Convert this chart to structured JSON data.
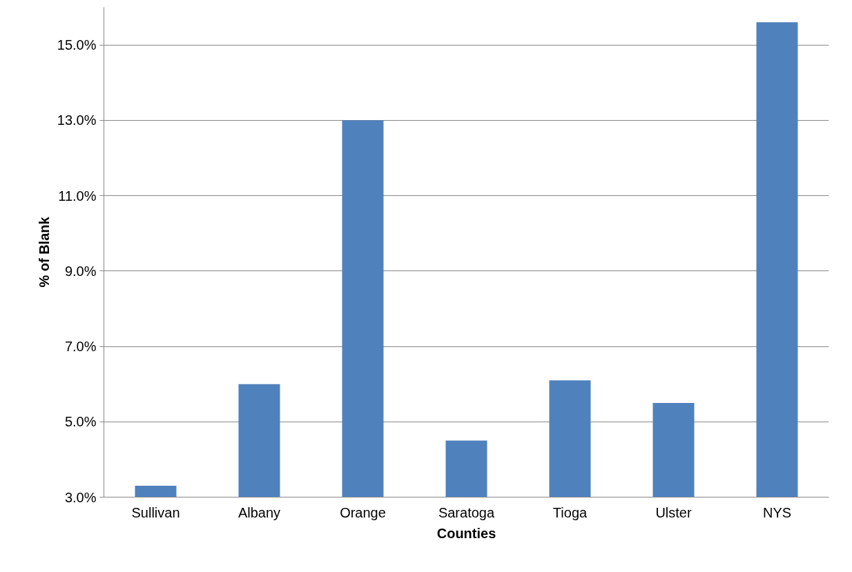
{
  "chart_data": {
    "type": "bar",
    "xlabel": "Counties",
    "ylabel": "% of Blank",
    "categories": [
      "Sullivan",
      "Albany",
      "Orange",
      "Saratoga",
      "Tioga",
      "Ulster",
      "NYS"
    ],
    "values": [
      3.3,
      6.0,
      13.0,
      4.5,
      6.1,
      5.5,
      15.6
    ],
    "color": "#4f81bd",
    "ylim": [
      3,
      16
    ],
    "yticks": [
      {
        "value": 3,
        "label": "3.0%"
      },
      {
        "value": 5,
        "label": "5.0%"
      },
      {
        "value": 7,
        "label": "7.0%"
      },
      {
        "value": 9,
        "label": "9.0%"
      },
      {
        "value": 11,
        "label": "11.0%"
      },
      {
        "value": 13,
        "label": "13.0%"
      },
      {
        "value": 15,
        "label": "15.0%"
      }
    ],
    "grid": "y"
  }
}
